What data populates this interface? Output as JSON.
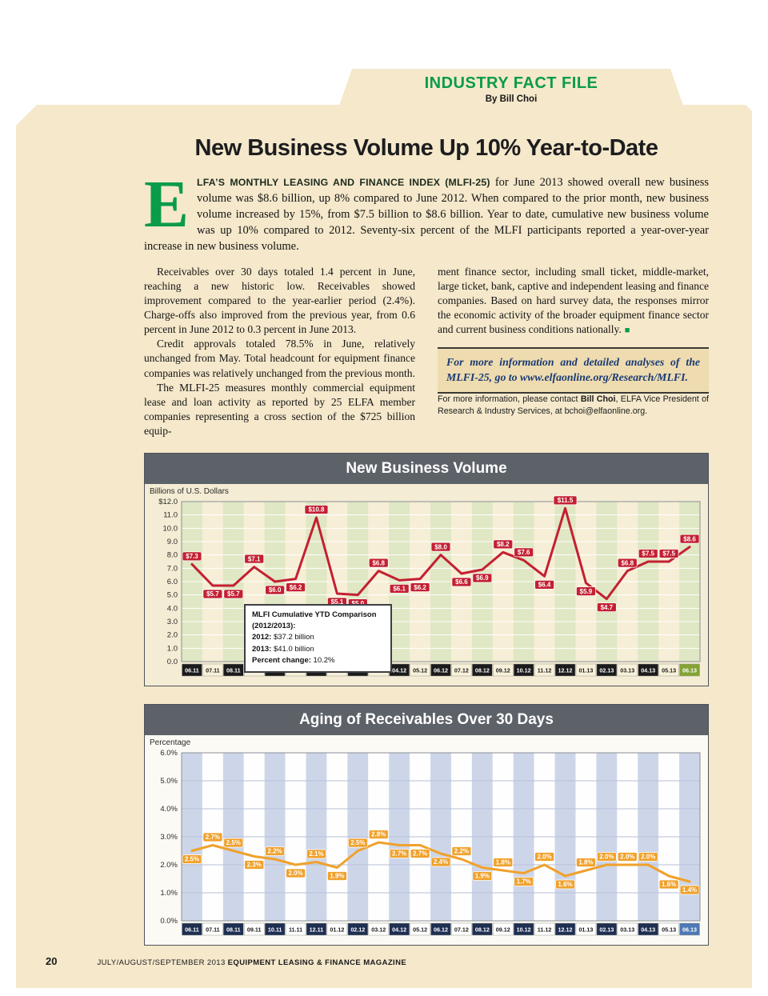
{
  "header": {
    "section_title": "INDUSTRY FACT FILE",
    "byline": "By Bill Choi"
  },
  "article": {
    "title": "New Business Volume Up 10% Year-to-Date",
    "dropcap": "E",
    "lead_in": "LFA’S MONTHLY LEASING AND FINANCE INDEX (MLFI-25)",
    "intro_rest": " for June 2013 showed overall new business volume was $8.6 billion, up 8% compared to June 2012. When compared to the prior month, new business volume increased by 15%, from $7.5 billion to $8.6 billion. Year to date, cumulative new business volume was up 10% compared to 2012. Seventy-six percent of the MLFI participants reported a year-over-year increase in new business volume.",
    "left_column": {
      "p1": "Receivables over 30 days totaled 1.4 percent in June, reaching a new historic low. Receivables showed improvement compared to the year-earlier period (2.4%). Charge-offs also improved from the previous year, from 0.6 percent in June 2012 to 0.3 percent in June 2013.",
      "p2": "Credit approvals totaled 78.5% in June, relatively unchanged from May. Total headcount for equipment finance companies was relatively unchanged from the previous month.",
      "p3": "The MLFI-25 measures monthly commercial equipment lease and loan activity as reported by 25 ELFA member companies representing a cross section of the $725 billion equip-"
    },
    "right_column": {
      "p1": "ment finance sector, including small ticket, middle-market, large ticket, bank, captive and independent leasing and finance companies. Based on hard survey data, the responses mirror the economic activity of the broader equipment finance sector and current business conditions nationally.",
      "end_mark": "■"
    },
    "callout": {
      "text": "For more information and detailed analyses of the MLFI-25, go to ",
      "link": "www.elfaonline.org/Research/MLFI."
    },
    "contact": {
      "pre": "For more information, please contact ",
      "name": "Bill Choi",
      "post": ", ELFA Vice President of Research & Industry Services, at bchoi@elfaonline.org."
    }
  },
  "chart_data": [
    {
      "type": "line",
      "title": "New Business Volume",
      "xlabel": "",
      "ylabel": "Billions of U.S. Dollars",
      "ylim": [
        0,
        12
      ],
      "ytick_labels": [
        "$12.0",
        "11.0",
        "10.0",
        "9.0",
        "8.0",
        "7.0",
        "6.0",
        "5.0",
        "4.0",
        "3.0",
        "2.0",
        "1.0",
        "0.0"
      ],
      "categories": [
        "06.11",
        "07.11",
        "08.11",
        "09.11",
        "10.11",
        "11.11",
        "12.11",
        "01.12",
        "02.12",
        "03.12",
        "04.12",
        "05.12",
        "06.12",
        "07.12",
        "08.12",
        "09.12",
        "10.12",
        "11.12",
        "12.12",
        "01.13",
        "02.13",
        "03.13",
        "04.13",
        "05.13",
        "06.13"
      ],
      "values": [
        7.3,
        5.7,
        5.7,
        7.1,
        6.0,
        6.2,
        10.8,
        5.1,
        5.0,
        6.8,
        6.1,
        6.2,
        8.0,
        6.6,
        6.9,
        8.2,
        7.6,
        6.4,
        11.5,
        5.9,
        4.7,
        6.8,
        7.5,
        7.5,
        8.6
      ],
      "point_labels": [
        "$7.3",
        "$5.7",
        "$5.7",
        "$7.1",
        "$6.0",
        "$6.2",
        "$10.8",
        "$5.1",
        "$5.0",
        "$6.8",
        "$6.1",
        "$6.2",
        "$8.0",
        "$6.6",
        "$6.9",
        "$8.2",
        "$7.6",
        "$6.4",
        "$11.5",
        "$5.9",
        "$4.7",
        "$6.8",
        "$7.5",
        "$7.5",
        "$8.6"
      ],
      "line_color": "#c32032",
      "stripe_colors": [
        "#dfe7c4",
        "#f6eed6"
      ],
      "grid_color": "#ffffff",
      "axis_dark_bg": "#1b1b1b",
      "axis_light_bg": "#f8f1da",
      "axis_last_bg": "#84a333",
      "axis_last_fg": "#ffffff",
      "annotation": {
        "title_line1": "MLFI Cumulative YTD Comparison",
        "title_line2": "(2012/2013):",
        "r1_label": "2012:",
        "r1_value": " $37.2 billion",
        "r2_label": "2013:",
        "r2_value": " $41.0 billion",
        "r3_label": "Percent change:",
        "r3_value": " 10.2%"
      }
    },
    {
      "type": "line",
      "title": "Aging of Receivables Over 30 Days",
      "xlabel": "",
      "ylabel": "Percentage",
      "ylim": [
        0,
        6
      ],
      "ytick_labels": [
        "6.0%",
        "5.0%",
        "4.0%",
        "3.0%",
        "2.0%",
        "1.0%",
        "0.0%"
      ],
      "categories": [
        "06.11",
        "07.11",
        "08.11",
        "09.11",
        "10.11",
        "11.11",
        "12.11",
        "01.12",
        "02.12",
        "03.12",
        "04.12",
        "05.12",
        "06.12",
        "07.12",
        "08.12",
        "09.12",
        "10.12",
        "11.12",
        "12.12",
        "01.13",
        "02.13",
        "03.13",
        "04.13",
        "05.13",
        "06.13"
      ],
      "values": [
        2.5,
        2.7,
        2.5,
        2.3,
        2.2,
        2.0,
        2.1,
        1.9,
        2.5,
        2.8,
        2.7,
        2.7,
        2.4,
        2.2,
        1.9,
        1.8,
        1.7,
        2.0,
        1.6,
        1.8,
        2.0,
        2.0,
        2.0,
        1.6,
        1.4
      ],
      "point_labels": [
        "2.5%",
        "2.7%",
        "2.5%",
        "2.3%",
        "2.2%",
        "2.0%",
        "2.1%",
        "1.9%",
        "2.5%",
        "2.8%",
        "2.7%",
        "2.7%",
        "2.4%",
        "2.2%",
        "1.9%",
        "1.8%",
        "1.7%",
        "2.0%",
        "1.6%",
        "1.8%",
        "2.0%",
        "2.0%",
        "2.0%",
        "1.6%",
        "1.4%"
      ],
      "line_color": "#f0a12b",
      "stripe_colors": [
        "#cdd6e9",
        "#fefefe"
      ],
      "grid_color": "#b6c0d6",
      "axis_dark_bg": "#1e2f52",
      "axis_light_bg": "#ffffff",
      "axis_last_bg": "#4d79b4",
      "axis_last_fg": "#ffffff"
    }
  ],
  "footer": {
    "page_number": "20",
    "issue": "JULY/AUGUST/SEPTEMBER 2013 ",
    "magazine": "EQUIPMENT LEASING & FINANCE MAGAZINE"
  }
}
